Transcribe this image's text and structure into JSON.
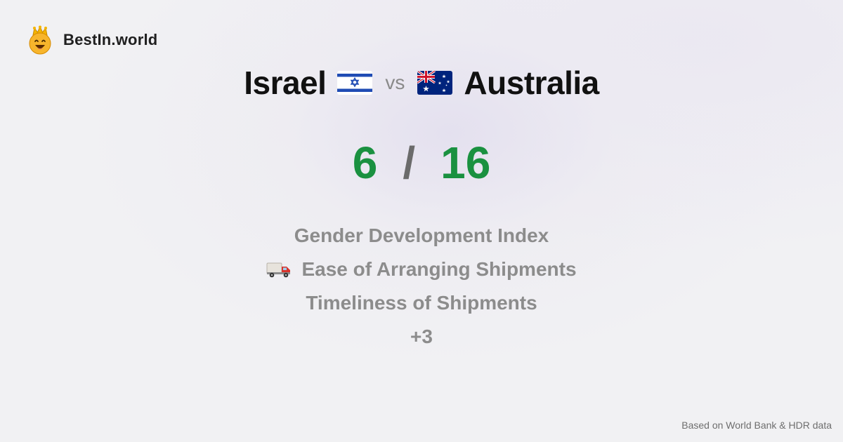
{
  "brand": {
    "name": "BestIn.world",
    "icon": "crown-smiley-icon"
  },
  "comparison": {
    "country_a": "Israel",
    "flag_a": "israel-flag-icon",
    "vs_label": "vs",
    "country_b": "Australia",
    "flag_b": "australia-flag-icon"
  },
  "score": {
    "a": "6",
    "separator": "/",
    "b": "16",
    "color": "#1a9140"
  },
  "metrics": [
    {
      "label": "Gender Development Index",
      "icon": ""
    },
    {
      "label": "Ease of Arranging Shipments",
      "icon": "delivery-truck-icon"
    },
    {
      "label": "Timeliness of Shipments",
      "icon": ""
    },
    {
      "label": "+3",
      "icon": ""
    }
  ],
  "footer": {
    "source": "Based on World Bank & HDR data"
  }
}
